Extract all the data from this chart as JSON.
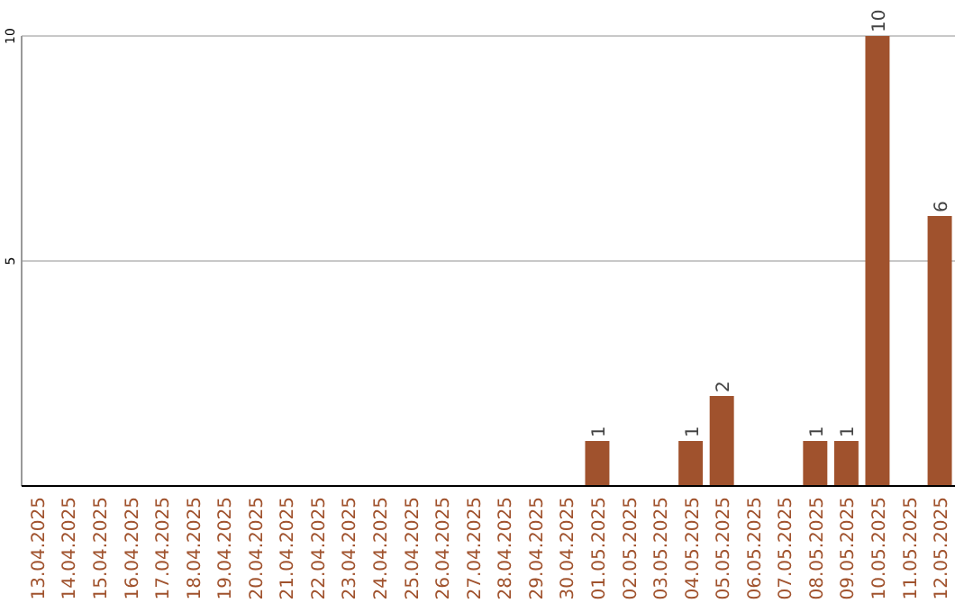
{
  "chart_data": {
    "type": "bar",
    "categories": [
      "13.04.2025",
      "14.04.2025",
      "15.04.2025",
      "16.04.2025",
      "17.04.2025",
      "18.04.2025",
      "19.04.2025",
      "20.04.2025",
      "21.04.2025",
      "22.04.2025",
      "23.04.2025",
      "24.04.2025",
      "25.04.2025",
      "26.04.2025",
      "27.04.2025",
      "28.04.2025",
      "29.04.2025",
      "30.04.2025",
      "01.05.2025",
      "02.05.2025",
      "03.05.2025",
      "04.05.2025",
      "05.05.2025",
      "06.05.2025",
      "07.05.2025",
      "08.05.2025",
      "09.05.2025",
      "10.05.2025",
      "11.05.2025",
      "12.05.2025"
    ],
    "values": [
      0,
      0,
      0,
      0,
      0,
      0,
      0,
      0,
      0,
      0,
      0,
      0,
      0,
      0,
      0,
      0,
      0,
      0,
      1,
      0,
      0,
      1,
      2,
      0,
      0,
      1,
      1,
      10,
      0,
      6
    ],
    "value_labels": [
      null,
      null,
      null,
      null,
      null,
      null,
      null,
      null,
      null,
      null,
      null,
      null,
      null,
      null,
      null,
      null,
      null,
      null,
      "1",
      null,
      null,
      "1",
      "2",
      null,
      null,
      "1",
      "1",
      "10",
      null,
      "6"
    ],
    "color": "#a0522d",
    "ylim": [
      0,
      10
    ],
    "yticks": [
      5,
      10
    ],
    "grid": "y"
  }
}
